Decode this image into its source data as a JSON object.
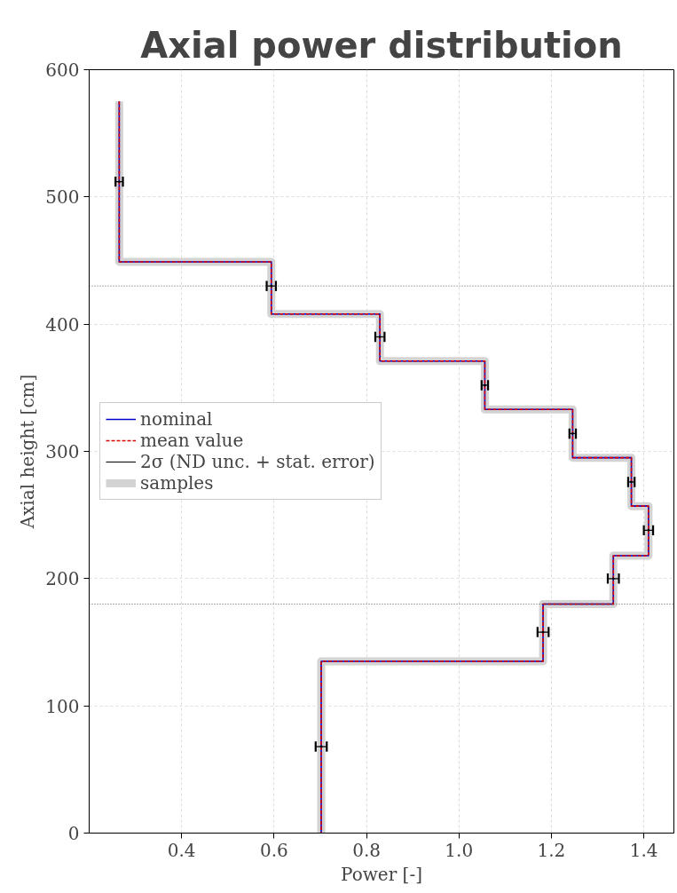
{
  "chart_data": {
    "type": "line",
    "title": "Axial power distribution",
    "xlabel": "Power [-]",
    "ylabel": "Axial height [cm]",
    "xlim": [
      0.2,
      1.465
    ],
    "xticks": [
      0.4,
      0.6,
      0.8,
      {
        "value": 1.0,
        "label": "1.0"
      },
      1.2,
      1.4
    ],
    "ylim": [
      0,
      600
    ],
    "yticks": [
      0,
      100,
      200,
      300,
      400,
      500,
      600
    ],
    "grid": true,
    "legend": "left",
    "series": [
      {
        "name": "samples",
        "color": "#d3d3d3",
        "x": [
          0.265,
          0.265,
          0.594,
          0.594,
          0.829,
          0.829,
          1.056,
          1.056,
          1.246,
          1.246,
          1.373,
          1.373,
          1.41,
          1.41,
          1.334,
          1.334,
          1.182,
          1.182,
          0.702,
          0.702
        ],
        "values": [
          575,
          449,
          449,
          408,
          408,
          371,
          371,
          333,
          333,
          295,
          295,
          257,
          257,
          218,
          218,
          180,
          180,
          135,
          135,
          0
        ]
      },
      {
        "name": "nominal",
        "color": "#0000cc",
        "line_style": "solid",
        "x": [
          0.265,
          0.265,
          0.594,
          0.594,
          0.829,
          0.829,
          1.056,
          1.056,
          1.246,
          1.246,
          1.373,
          1.373,
          1.41,
          1.41,
          1.334,
          1.334,
          1.182,
          1.182,
          0.702,
          0.702
        ],
        "values": [
          575,
          449,
          449,
          408,
          408,
          371,
          371,
          333,
          333,
          295,
          295,
          257,
          257,
          218,
          218,
          180,
          180,
          135,
          135,
          0
        ]
      },
      {
        "name": "mean value",
        "color": "#dd0000",
        "line_style": "dashed",
        "x": [
          0.265,
          0.265,
          0.594,
          0.594,
          0.829,
          0.829,
          1.056,
          1.056,
          1.246,
          1.246,
          1.373,
          1.373,
          1.41,
          1.41,
          1.334,
          1.334,
          1.182,
          1.182,
          0.702,
          0.702
        ],
        "values": [
          575,
          449,
          449,
          408,
          408,
          371,
          371,
          333,
          333,
          295,
          295,
          257,
          257,
          218,
          218,
          180,
          180,
          135,
          135,
          0
        ]
      },
      {
        "name": "2σ (ND unc. + stat. error)",
        "type": "scatter",
        "color": "#000000",
        "x": [
          0.265,
          0.594,
          0.829,
          1.056,
          1.246,
          1.373,
          1.41,
          1.334,
          1.182,
          0.702
        ],
        "values": [
          512,
          430,
          390,
          352,
          314,
          276,
          238,
          200,
          158,
          68
        ],
        "xerrors": [
          0.008,
          0.01,
          0.01,
          0.007,
          0.007,
          0.007,
          0.01,
          0.012,
          0.012,
          0.012
        ]
      }
    ],
    "ref_lines": [
      {
        "axis": "y",
        "value": 430,
        "color": "#333333",
        "line_style": "dotted"
      },
      {
        "axis": "y",
        "value": 180,
        "color": "#333333",
        "line_style": "dotted"
      }
    ]
  }
}
